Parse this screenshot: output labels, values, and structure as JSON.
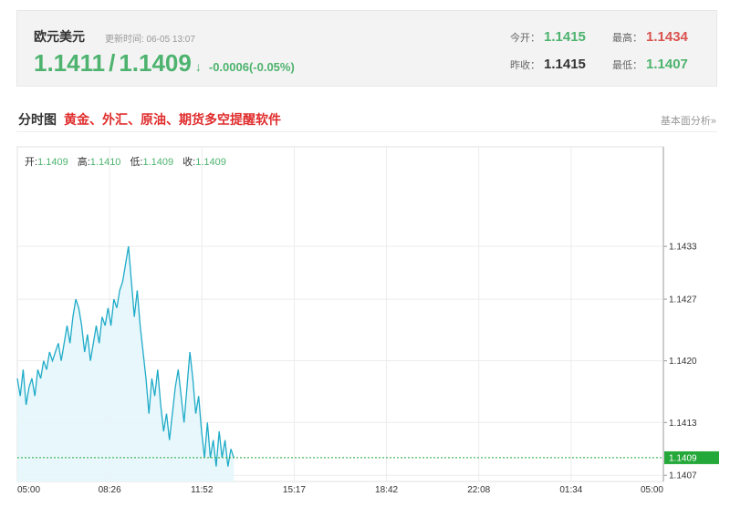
{
  "quote": {
    "name": "欧元美元",
    "update_time": "更新时间: 06-05 13:07",
    "bid": "1.1411",
    "separator": "/",
    "ask": "1.1409",
    "arrow": "↓",
    "change": "-0.0006(-0.05%)",
    "open_label": "今开：",
    "open": "1.1415",
    "high_label": "最高：",
    "high": "1.1434",
    "prev_close_label": "昨收：",
    "prev_close": "1.1415",
    "low_label": "最低：",
    "low": "1.1407"
  },
  "section": {
    "title": "分时图",
    "link": "黄金、外汇、原油、期货多空提醒软件",
    "fundamentals": "基本面分析»"
  },
  "ohlc": {
    "open_label": "开:",
    "open": "1.1409",
    "high_label": "高:",
    "high": "1.1410",
    "low_label": "低:",
    "low": "1.1409",
    "close_label": "收:",
    "close": "1.1409"
  },
  "chart_data": {
    "type": "area",
    "x_ticks": [
      "05:00",
      "08:26",
      "11:52",
      "15:17",
      "18:42",
      "22:08",
      "01:34",
      "05:00"
    ],
    "y_ticks": [
      "1.1433",
      "1.1427",
      "1.1420",
      "1.1413",
      "1.1407"
    ],
    "current_price": "1.1409",
    "ylim": [
      1.14063,
      1.14443
    ],
    "line_color": "#1eabc8",
    "current_color": "#25a83a",
    "series": [
      {
        "values": [
          1.1418,
          1.1416,
          1.1419,
          1.1415,
          1.1417,
          1.1418,
          1.1416,
          1.1419,
          1.1418,
          1.142,
          1.1419,
          1.1421,
          1.142,
          1.1421,
          1.1422,
          1.142,
          1.1422,
          1.1424,
          1.1422,
          1.1425,
          1.1427,
          1.1426,
          1.1424,
          1.1421,
          1.1423,
          1.142,
          1.1422,
          1.1424,
          1.1422,
          1.1425,
          1.1424,
          1.1426,
          1.1424,
          1.1427,
          1.1426,
          1.1428,
          1.1429,
          1.1431,
          1.1433,
          1.1429,
          1.1425,
          1.1428,
          1.1424,
          1.1421,
          1.1418,
          1.1414,
          1.1418,
          1.1416,
          1.1419,
          1.1415,
          1.1412,
          1.1414,
          1.1411,
          1.1414,
          1.1417,
          1.1419,
          1.1416,
          1.1413,
          1.1417,
          1.1421,
          1.1418,
          1.1414,
          1.1416,
          1.1412,
          1.1409,
          1.1413,
          1.1409,
          1.1411,
          1.1408,
          1.1412,
          1.1409,
          1.1411,
          1.1408,
          1.141,
          1.1409
        ]
      }
    ],
    "session_points": 288
  }
}
